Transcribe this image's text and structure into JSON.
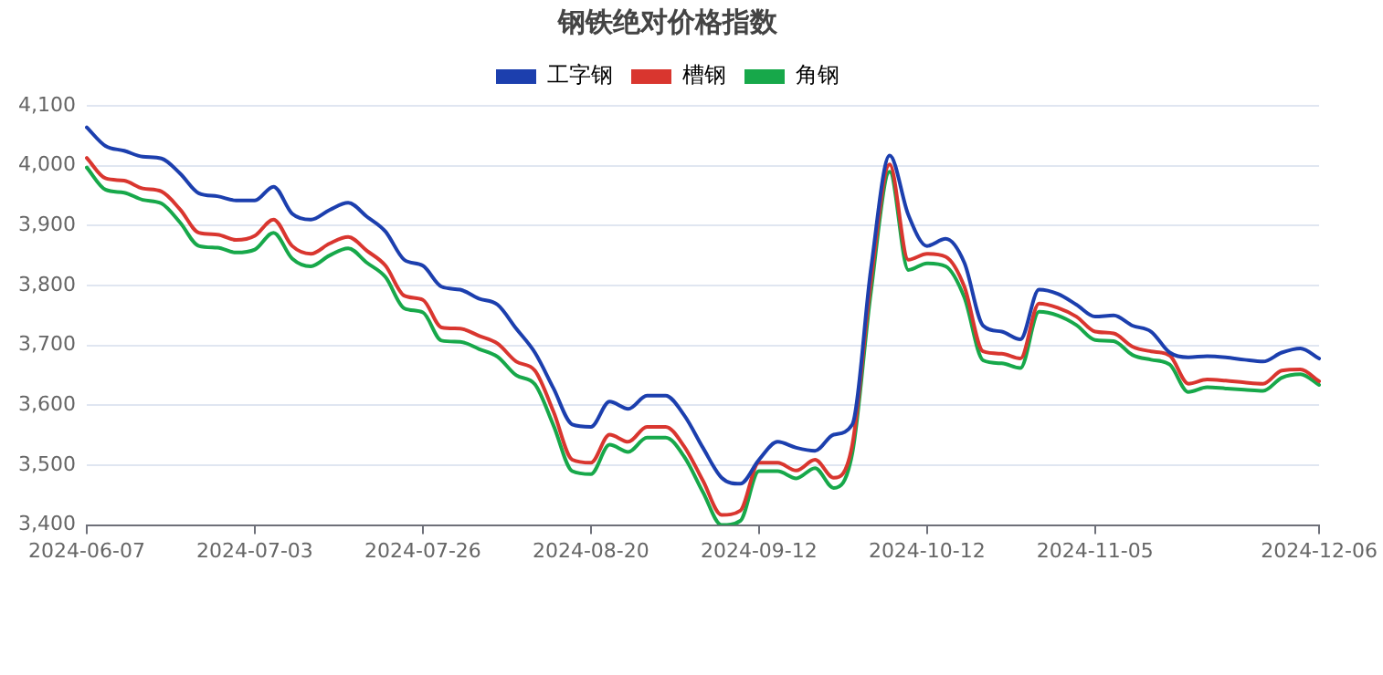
{
  "chart_data": {
    "type": "line",
    "title": "钢铁绝对价格指数",
    "categories": [
      "2024-06-07",
      null,
      null,
      null,
      null,
      null,
      null,
      null,
      null,
      "2024-07-03",
      null,
      null,
      null,
      null,
      null,
      null,
      null,
      null,
      "2024-07-26",
      null,
      null,
      null,
      null,
      null,
      null,
      null,
      null,
      "2024-08-20",
      null,
      null,
      null,
      null,
      null,
      null,
      null,
      null,
      "2024-09-12",
      null,
      null,
      null,
      null,
      null,
      null,
      null,
      null,
      "2024-10-12",
      null,
      null,
      null,
      null,
      null,
      null,
      null,
      null,
      "2024-11-05",
      null,
      null,
      null,
      null,
      null,
      null,
      null,
      null,
      null,
      null,
      null,
      "2024-12-06"
    ],
    "series": [
      {
        "name": "工字钢",
        "color": "#1c3fae",
        "values": [
          4064,
          4033,
          4025,
          4015,
          4012,
          3987,
          3954,
          3949,
          3942,
          3942,
          3965,
          3920,
          3910,
          3926,
          3938,
          3915,
          3890,
          3843,
          3833,
          3798,
          3793,
          3778,
          3768,
          3728,
          3688,
          3628,
          3568,
          3564,
          3606,
          3594,
          3616,
          3616,
          3583,
          3529,
          3479,
          3469,
          3509,
          3539,
          3529,
          3524,
          3551,
          3568,
          3828,
          4017,
          3918,
          3866,
          3878,
          3838,
          3733,
          3723,
          3710,
          3793,
          3786,
          3768,
          3748,
          3750,
          3733,
          3723,
          3688,
          3680,
          3682,
          3680,
          3676,
          3673,
          3688,
          3695,
          3678
        ]
      },
      {
        "name": "槽钢",
        "color": "#d9362f",
        "values": [
          4013,
          3979,
          3975,
          3962,
          3957,
          3927,
          3888,
          3885,
          3876,
          3883,
          3910,
          3866,
          3853,
          3870,
          3881,
          3858,
          3833,
          3783,
          3776,
          3730,
          3728,
          3716,
          3703,
          3673,
          3658,
          3589,
          3509,
          3504,
          3551,
          3539,
          3564,
          3564,
          3531,
          3474,
          3417,
          3424,
          3504,
          3504,
          3491,
          3509,
          3479,
          3534,
          3808,
          4002,
          3843,
          3853,
          3848,
          3798,
          3690,
          3686,
          3678,
          3770,
          3763,
          3748,
          3723,
          3720,
          3698,
          3690,
          3683,
          3636,
          3643,
          3641,
          3638,
          3636,
          3658,
          3660,
          3640
        ]
      },
      {
        "name": "角钢",
        "color": "#17a84a",
        "values": [
          3997,
          3960,
          3955,
          3943,
          3937,
          3905,
          3866,
          3863,
          3855,
          3860,
          3888,
          3845,
          3832,
          3850,
          3862,
          3838,
          3814,
          3762,
          3755,
          3708,
          3706,
          3694,
          3681,
          3650,
          3635,
          3566,
          3490,
          3485,
          3534,
          3522,
          3546,
          3546,
          3514,
          3455,
          3400,
          3407,
          3490,
          3490,
          3478,
          3495,
          3462,
          3520,
          3790,
          3990,
          3826,
          3837,
          3832,
          3780,
          3675,
          3670,
          3662,
          3756,
          3750,
          3734,
          3709,
          3707,
          3684,
          3676,
          3668,
          3622,
          3630,
          3628,
          3626,
          3624,
          3646,
          3652,
          3634
        ]
      }
    ],
    "ylim": [
      3400,
      4100
    ],
    "yticks": [
      {
        "value": 3400,
        "label": "3,400"
      },
      {
        "value": 3500,
        "label": "3,500"
      },
      {
        "value": 3600,
        "label": "3,600"
      },
      {
        "value": 3700,
        "label": "3,700"
      },
      {
        "value": 3800,
        "label": "3,800"
      },
      {
        "value": 3900,
        "label": "3,900"
      },
      {
        "value": 4000,
        "label": "4,000"
      },
      {
        "value": 4100,
        "label": "4,100"
      }
    ],
    "grid": "y",
    "legend": "top",
    "marker": "none",
    "line_style": "solid"
  }
}
